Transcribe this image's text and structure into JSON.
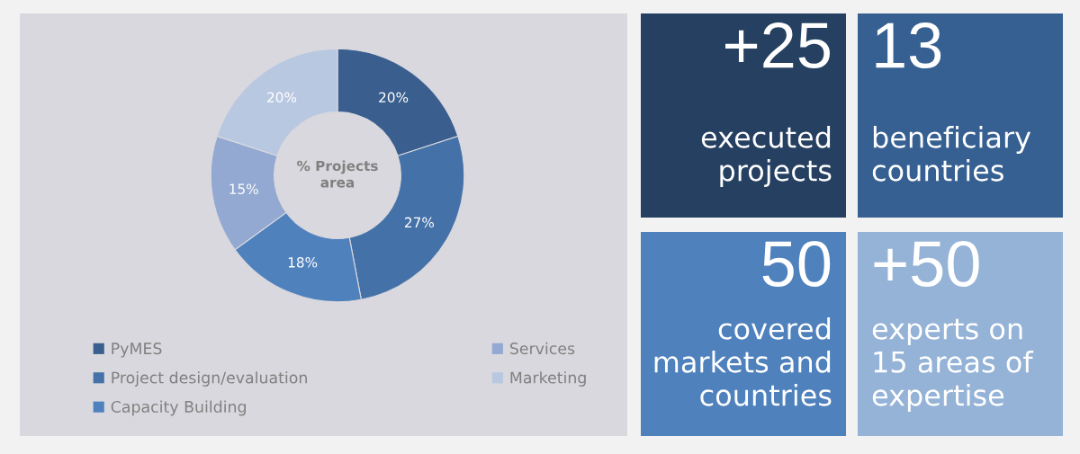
{
  "chart_data": [
    {
      "type": "donut",
      "title": "% Projects area",
      "categories": [
        "PyMES",
        "Project design/evaluation",
        "Capacity Building",
        "Services",
        "Marketing"
      ],
      "values": [
        20,
        27,
        18,
        15,
        20
      ],
      "colors": [
        "#3a5f8f",
        "#4472a8",
        "#4f81bd",
        "#93a9d2",
        "#b9c8e1"
      ],
      "value_labels": [
        "20%",
        "27%",
        "18%",
        "15%",
        "20%"
      ],
      "legend": "bottom"
    },
    {
      "type": "other",
      "annotations": [
        "+25",
        "executed\nprojects",
        "13",
        "beneficiary\ncountries",
        "50",
        "covered\nmarkets and\ncountries",
        "+50",
        "experts on\n15 areas of\nexpertise"
      ],
      "colors": [
        "#264061",
        "#376092",
        "#4f81bd",
        "#95b3d7"
      ]
    }
  ]
}
